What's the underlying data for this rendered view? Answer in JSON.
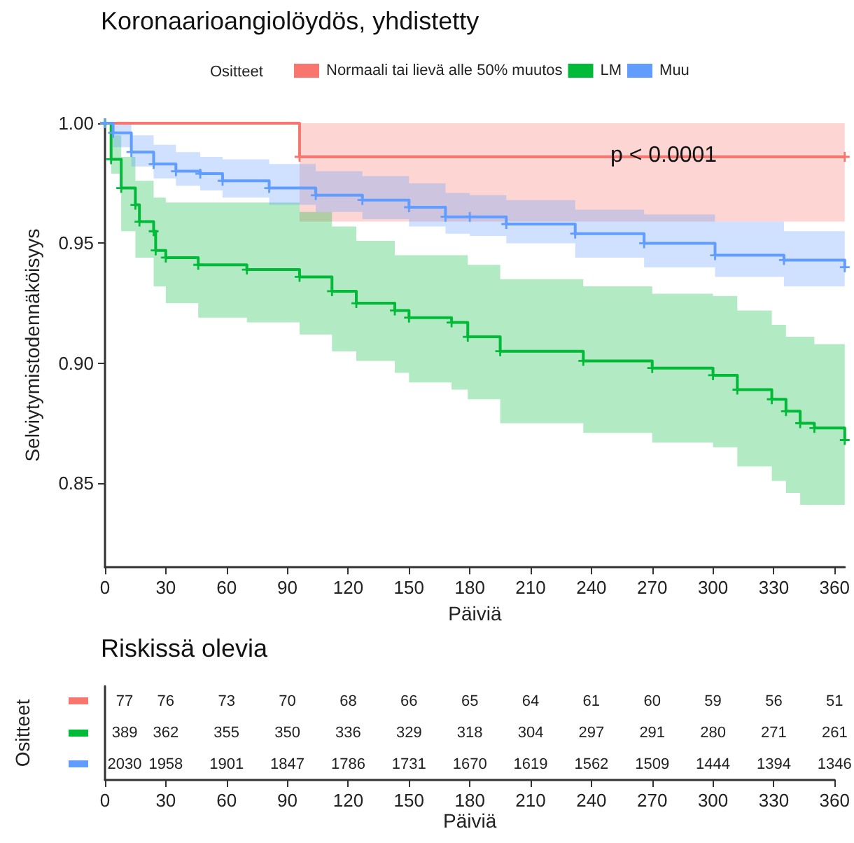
{
  "chart_data": [
    {
      "type": "step",
      "title": "Koronaarioangiolöydös, yhdistetty",
      "xlabel": "Päiviä",
      "ylabel": "Selviytymistodennäköisyys",
      "legend_title": "Ositteet",
      "legend": "top",
      "grid": false,
      "marker": "cross",
      "line_style": "solid",
      "xlim": [
        0,
        365
      ],
      "xticks": [
        0,
        30,
        60,
        90,
        120,
        150,
        180,
        210,
        240,
        270,
        300,
        330,
        360
      ],
      "ylim": [
        0.815,
        1.0
      ],
      "yticks": [
        {
          "value": 0.85,
          "label": "0.85"
        },
        {
          "value": 0.9,
          "label": "0.90"
        },
        {
          "value": 0.95,
          "label": "0.95"
        },
        {
          "value": 1.0,
          "label": "1.00"
        }
      ],
      "annotations": [
        "p < 0.0001"
      ],
      "series": [
        {
          "name": "Normaali tai lievä alle 50% muutos",
          "color": "#f8766d",
          "x": [
            0,
            96,
            365
          ],
          "values": [
            1.0,
            0.986,
            0.986
          ],
          "lower": [
            1.0,
            0.959,
            0.959
          ],
          "upper": [
            1.0,
            1.0,
            1.0
          ]
        },
        {
          "name": "LM",
          "color": "#00ba38",
          "x": [
            0,
            3,
            8,
            15,
            17,
            24,
            25,
            30,
            46,
            70,
            96,
            112,
            124,
            143,
            150,
            171,
            179,
            195,
            236,
            270,
            300,
            312,
            329,
            336,
            343,
            350,
            365
          ],
          "values": [
            1.0,
            0.985,
            0.973,
            0.966,
            0.959,
            0.955,
            0.947,
            0.944,
            0.941,
            0.939,
            0.936,
            0.93,
            0.925,
            0.922,
            0.919,
            0.917,
            0.911,
            0.905,
            0.901,
            0.898,
            0.895,
            0.889,
            0.885,
            0.88,
            0.875,
            0.873,
            0.868
          ],
          "lower": [
            1.0,
            0.979,
            0.955,
            0.944,
            0.944,
            0.932,
            0.932,
            0.925,
            0.919,
            0.917,
            0.912,
            0.905,
            0.901,
            0.896,
            0.892,
            0.889,
            0.885,
            0.875,
            0.871,
            0.867,
            0.865,
            0.857,
            0.851,
            0.846,
            0.841,
            0.841,
            0.835
          ],
          "upper": [
            1.0,
            0.995,
            0.986,
            0.976,
            0.976,
            0.969,
            0.969,
            0.967,
            0.967,
            0.967,
            0.963,
            0.957,
            0.951,
            0.945,
            0.945,
            0.945,
            0.941,
            0.935,
            0.932,
            0.929,
            0.928,
            0.922,
            0.916,
            0.911,
            0.911,
            0.908,
            0.908
          ]
        },
        {
          "name": "Muu",
          "color": "#619cff",
          "x": [
            0,
            4,
            13,
            24,
            35,
            47,
            58,
            81,
            104,
            127,
            150,
            168,
            180,
            198,
            232,
            266,
            301,
            335,
            365
          ],
          "values": [
            1.0,
            0.996,
            0.988,
            0.983,
            0.98,
            0.979,
            0.976,
            0.973,
            0.97,
            0.968,
            0.965,
            0.961,
            0.961,
            0.958,
            0.954,
            0.95,
            0.945,
            0.943,
            0.94
          ],
          "lower": [
            1.0,
            0.99,
            0.982,
            0.977,
            0.974,
            0.972,
            0.969,
            0.966,
            0.963,
            0.96,
            0.957,
            0.954,
            0.953,
            0.95,
            0.944,
            0.94,
            0.936,
            0.932,
            0.929
          ],
          "upper": [
            1.0,
            1.0,
            0.995,
            0.991,
            0.988,
            0.986,
            0.985,
            0.983,
            0.98,
            0.978,
            0.975,
            0.971,
            0.97,
            0.968,
            0.964,
            0.962,
            0.959,
            0.955,
            0.951
          ]
        }
      ]
    },
    {
      "type": "heatmap",
      "title": "Riskissä olevia",
      "xlabel": "Päiviä",
      "ylabel": "Ositteet",
      "data_labels": true,
      "categories": [
        "0",
        "30",
        "60",
        "90",
        "120",
        "150",
        "180",
        "210",
        "240",
        "270",
        "300",
        "330",
        "360"
      ],
      "y_categories": [
        null,
        null,
        null
      ],
      "cells": [
        [
          77,
          76,
          73,
          70,
          68,
          66,
          65,
          64,
          61,
          60,
          59,
          56,
          51
        ],
        [
          389,
          362,
          355,
          350,
          336,
          329,
          318,
          304,
          297,
          291,
          280,
          271,
          261
        ],
        [
          2030,
          1958,
          1901,
          1847,
          1786,
          1731,
          1670,
          1619,
          1562,
          1509,
          1444,
          1394,
          1346
        ]
      ]
    }
  ]
}
